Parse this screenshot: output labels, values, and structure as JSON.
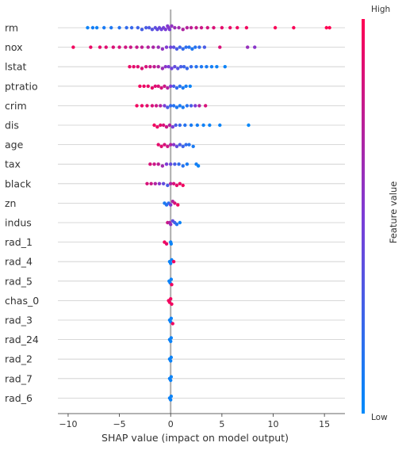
{
  "chart_data": {
    "type": "scatter",
    "subtype": "shap-beeswarm",
    "title": "",
    "xlabel": "SHAP value (impact on model output)",
    "ylabel": "",
    "xlim": [
      -11,
      17
    ],
    "xticks": [
      -10,
      -5,
      0,
      5,
      10,
      15
    ],
    "grid": true,
    "colorbar": {
      "label": "Feature value",
      "high_label": "High",
      "low_label": "Low",
      "low_color": "#008bfb",
      "high_color": "#ff0052",
      "placement": "right"
    },
    "colors": {
      "low": "#008bfb",
      "high": "#ff0052",
      "zero_line": "#999999",
      "row_lines": "#cccccc"
    },
    "features": [
      {
        "name": "rm",
        "points": [
          {
            "x": -8.1,
            "v": 0.05
          },
          {
            "x": -7.6,
            "v": 0.08
          },
          {
            "x": -7.2,
            "v": 0.06
          },
          {
            "x": -6.5,
            "v": 0.1
          },
          {
            "x": -5.8,
            "v": 0.12
          },
          {
            "x": -5.0,
            "v": 0.15
          },
          {
            "x": -4.3,
            "v": 0.2
          },
          {
            "x": -3.8,
            "v": 0.22
          },
          {
            "x": -3.2,
            "v": 0.25
          },
          {
            "x": -2.8,
            "v": 0.28
          },
          {
            "x": -2.4,
            "v": 0.3
          },
          {
            "x": -2.1,
            "v": 0.32
          },
          {
            "x": -1.8,
            "v": 0.35
          },
          {
            "x": -1.5,
            "v": 0.38
          },
          {
            "x": -1.3,
            "v": 0.4
          },
          {
            "x": -1.1,
            "v": 0.42
          },
          {
            "x": -0.9,
            "v": 0.45
          },
          {
            "x": -0.7,
            "v": 0.48
          },
          {
            "x": -0.5,
            "v": 0.5
          },
          {
            "x": -0.3,
            "v": 0.52
          },
          {
            "x": -0.2,
            "v": 0.55
          },
          {
            "x": -0.1,
            "v": 0.5
          },
          {
            "x": 0.1,
            "v": 0.58
          },
          {
            "x": 0.4,
            "v": 0.62
          },
          {
            "x": 0.8,
            "v": 0.65
          },
          {
            "x": 1.2,
            "v": 0.7
          },
          {
            "x": 1.6,
            "v": 0.72
          },
          {
            "x": 2.0,
            "v": 0.75
          },
          {
            "x": 2.5,
            "v": 0.78
          },
          {
            "x": 3.0,
            "v": 0.8
          },
          {
            "x": 3.6,
            "v": 0.83
          },
          {
            "x": 4.2,
            "v": 0.86
          },
          {
            "x": 5.0,
            "v": 0.9
          },
          {
            "x": 5.8,
            "v": 0.92
          },
          {
            "x": 6.5,
            "v": 0.94
          },
          {
            "x": 7.4,
            "v": 0.95
          },
          {
            "x": 10.2,
            "v": 0.98
          },
          {
            "x": 12.0,
            "v": 0.98
          },
          {
            "x": 15.2,
            "v": 1.0
          },
          {
            "x": 15.5,
            "v": 1.0
          }
        ]
      },
      {
        "name": "nox",
        "points": [
          {
            "x": -9.5,
            "v": 0.95
          },
          {
            "x": -7.8,
            "v": 0.92
          },
          {
            "x": -6.9,
            "v": 0.9
          },
          {
            "x": -6.3,
            "v": 0.88
          },
          {
            "x": -5.6,
            "v": 0.86
          },
          {
            "x": -5.0,
            "v": 0.85
          },
          {
            "x": -4.4,
            "v": 0.82
          },
          {
            "x": -3.9,
            "v": 0.8
          },
          {
            "x": -3.3,
            "v": 0.78
          },
          {
            "x": -2.8,
            "v": 0.75
          },
          {
            "x": -2.2,
            "v": 0.72
          },
          {
            "x": -1.7,
            "v": 0.68
          },
          {
            "x": -1.2,
            "v": 0.62
          },
          {
            "x": -0.8,
            "v": 0.58
          },
          {
            "x": -0.4,
            "v": 0.52
          },
          {
            "x": 0.0,
            "v": 0.45
          },
          {
            "x": 0.3,
            "v": 0.38
          },
          {
            "x": 0.6,
            "v": 0.3
          },
          {
            "x": 0.9,
            "v": 0.25
          },
          {
            "x": 1.2,
            "v": 0.2
          },
          {
            "x": 1.5,
            "v": 0.18
          },
          {
            "x": 1.8,
            "v": 0.15
          },
          {
            "x": 2.1,
            "v": 0.12
          },
          {
            "x": 2.4,
            "v": 0.15
          },
          {
            "x": 2.8,
            "v": 0.2
          },
          {
            "x": 3.3,
            "v": 0.3
          },
          {
            "x": 4.8,
            "v": 0.85
          },
          {
            "x": 7.5,
            "v": 0.6
          },
          {
            "x": 8.2,
            "v": 0.55
          }
        ]
      },
      {
        "name": "lstat",
        "points": [
          {
            "x": -4.0,
            "v": 0.92
          },
          {
            "x": -3.6,
            "v": 0.9
          },
          {
            "x": -3.2,
            "v": 0.88
          },
          {
            "x": -2.8,
            "v": 0.86
          },
          {
            "x": -2.4,
            "v": 0.84
          },
          {
            "x": -2.0,
            "v": 0.8
          },
          {
            "x": -1.6,
            "v": 0.76
          },
          {
            "x": -1.2,
            "v": 0.7
          },
          {
            "x": -0.8,
            "v": 0.62
          },
          {
            "x": -0.5,
            "v": 0.55
          },
          {
            "x": -0.2,
            "v": 0.5
          },
          {
            "x": 0.1,
            "v": 0.45
          },
          {
            "x": 0.4,
            "v": 0.4
          },
          {
            "x": 0.7,
            "v": 0.35
          },
          {
            "x": 1.0,
            "v": 0.3
          },
          {
            "x": 1.3,
            "v": 0.25
          },
          {
            "x": 1.6,
            "v": 0.22
          },
          {
            "x": 2.0,
            "v": 0.2
          },
          {
            "x": 2.5,
            "v": 0.15
          },
          {
            "x": 3.0,
            "v": 0.12
          },
          {
            "x": 3.5,
            "v": 0.1
          },
          {
            "x": 4.0,
            "v": 0.08
          },
          {
            "x": 4.5,
            "v": 0.06
          },
          {
            "x": 5.3,
            "v": 0.05
          }
        ]
      },
      {
        "name": "ptratio",
        "points": [
          {
            "x": -3.0,
            "v": 0.95
          },
          {
            "x": -2.6,
            "v": 0.93
          },
          {
            "x": -2.2,
            "v": 0.92
          },
          {
            "x": -1.8,
            "v": 0.9
          },
          {
            "x": -1.5,
            "v": 0.88
          },
          {
            "x": -1.2,
            "v": 0.86
          },
          {
            "x": -0.9,
            "v": 0.84
          },
          {
            "x": -0.6,
            "v": 0.8
          },
          {
            "x": -0.3,
            "v": 0.7
          },
          {
            "x": 0.0,
            "v": 0.5
          },
          {
            "x": 0.3,
            "v": 0.3
          },
          {
            "x": 0.6,
            "v": 0.2
          },
          {
            "x": 0.9,
            "v": 0.15
          },
          {
            "x": 1.2,
            "v": 0.1
          },
          {
            "x": 1.5,
            "v": 0.08
          },
          {
            "x": 1.9,
            "v": 0.05
          }
        ]
      },
      {
        "name": "crim",
        "points": [
          {
            "x": -3.3,
            "v": 0.95
          },
          {
            "x": -2.8,
            "v": 0.92
          },
          {
            "x": -2.3,
            "v": 0.9
          },
          {
            "x": -1.8,
            "v": 0.85
          },
          {
            "x": -1.4,
            "v": 0.8
          },
          {
            "x": -1.0,
            "v": 0.7
          },
          {
            "x": -0.6,
            "v": 0.5
          },
          {
            "x": -0.3,
            "v": 0.3
          },
          {
            "x": 0.0,
            "v": 0.2
          },
          {
            "x": 0.3,
            "v": 0.15
          },
          {
            "x": 0.6,
            "v": 0.12
          },
          {
            "x": 0.9,
            "v": 0.1
          },
          {
            "x": 1.2,
            "v": 0.1
          },
          {
            "x": 1.6,
            "v": 0.15
          },
          {
            "x": 2.0,
            "v": 0.3
          },
          {
            "x": 2.4,
            "v": 0.5
          },
          {
            "x": 2.8,
            "v": 0.7
          },
          {
            "x": 3.4,
            "v": 0.85
          }
        ]
      },
      {
        "name": "dis",
        "points": [
          {
            "x": -1.6,
            "v": 0.95
          },
          {
            "x": -1.3,
            "v": 0.92
          },
          {
            "x": -1.0,
            "v": 0.9
          },
          {
            "x": -0.7,
            "v": 0.85
          },
          {
            "x": -0.4,
            "v": 0.8
          },
          {
            "x": -0.1,
            "v": 0.7
          },
          {
            "x": 0.2,
            "v": 0.5
          },
          {
            "x": 0.5,
            "v": 0.3
          },
          {
            "x": 0.9,
            "v": 0.2
          },
          {
            "x": 1.4,
            "v": 0.15
          },
          {
            "x": 2.0,
            "v": 0.1
          },
          {
            "x": 2.6,
            "v": 0.08
          },
          {
            "x": 3.2,
            "v": 0.06
          },
          {
            "x": 3.8,
            "v": 0.05
          },
          {
            "x": 4.8,
            "v": 0.05
          },
          {
            "x": 7.6,
            "v": 0.02
          }
        ]
      },
      {
        "name": "age",
        "points": [
          {
            "x": -1.2,
            "v": 0.9
          },
          {
            "x": -0.9,
            "v": 0.88
          },
          {
            "x": -0.6,
            "v": 0.85
          },
          {
            "x": -0.3,
            "v": 0.8
          },
          {
            "x": 0.0,
            "v": 0.7
          },
          {
            "x": 0.3,
            "v": 0.55
          },
          {
            "x": 0.6,
            "v": 0.4
          },
          {
            "x": 0.9,
            "v": 0.3
          },
          {
            "x": 1.2,
            "v": 0.25
          },
          {
            "x": 1.5,
            "v": 0.2
          },
          {
            "x": 1.8,
            "v": 0.15
          },
          {
            "x": 2.2,
            "v": 0.1
          }
        ]
      },
      {
        "name": "tax",
        "points": [
          {
            "x": -2.0,
            "v": 0.85
          },
          {
            "x": -1.6,
            "v": 0.8
          },
          {
            "x": -1.2,
            "v": 0.75
          },
          {
            "x": -0.8,
            "v": 0.65
          },
          {
            "x": -0.4,
            "v": 0.5
          },
          {
            "x": 0.0,
            "v": 0.4
          },
          {
            "x": 0.4,
            "v": 0.3
          },
          {
            "x": 0.8,
            "v": 0.2
          },
          {
            "x": 1.2,
            "v": 0.15
          },
          {
            "x": 1.6,
            "v": 0.1
          },
          {
            "x": 2.5,
            "v": 0.08
          },
          {
            "x": 2.7,
            "v": 0.05
          }
        ]
      },
      {
        "name": "black",
        "points": [
          {
            "x": -2.3,
            "v": 0.85
          },
          {
            "x": -1.9,
            "v": 0.8
          },
          {
            "x": -1.5,
            "v": 0.7
          },
          {
            "x": -1.1,
            "v": 0.55
          },
          {
            "x": -0.7,
            "v": 0.4
          },
          {
            "x": -0.3,
            "v": 0.3
          },
          {
            "x": 0.0,
            "v": 0.7
          },
          {
            "x": 0.3,
            "v": 0.85
          },
          {
            "x": 0.6,
            "v": 0.9
          },
          {
            "x": 0.9,
            "v": 0.92
          },
          {
            "x": 1.2,
            "v": 0.95
          }
        ]
      },
      {
        "name": "zn",
        "points": [
          {
            "x": -0.6,
            "v": 0.1
          },
          {
            "x": -0.4,
            "v": 0.15
          },
          {
            "x": -0.2,
            "v": 0.2
          },
          {
            "x": 0.0,
            "v": 0.5
          },
          {
            "x": 0.2,
            "v": 0.7
          },
          {
            "x": 0.4,
            "v": 0.85
          },
          {
            "x": 0.7,
            "v": 0.95
          }
        ]
      },
      {
        "name": "indus",
        "points": [
          {
            "x": -0.3,
            "v": 0.8
          },
          {
            "x": -0.1,
            "v": 0.7
          },
          {
            "x": 0.0,
            "v": 0.6
          },
          {
            "x": 0.2,
            "v": 0.4
          },
          {
            "x": 0.4,
            "v": 0.25
          },
          {
            "x": 0.6,
            "v": 0.15
          },
          {
            "x": 0.9,
            "v": 0.05
          }
        ]
      },
      {
        "name": "rad_1",
        "points": [
          {
            "x": -0.6,
            "v": 0.95
          },
          {
            "x": -0.4,
            "v": 0.9
          },
          {
            "x": 0.0,
            "v": 0.05
          },
          {
            "x": 0.05,
            "v": 0.05
          }
        ]
      },
      {
        "name": "rad_4",
        "points": [
          {
            "x": -0.1,
            "v": 0.05
          },
          {
            "x": 0.0,
            "v": 0.05
          },
          {
            "x": 0.1,
            "v": 0.05
          },
          {
            "x": 0.3,
            "v": 0.95
          }
        ]
      },
      {
        "name": "rad_5",
        "points": [
          {
            "x": -0.15,
            "v": 0.05
          },
          {
            "x": -0.05,
            "v": 0.05
          },
          {
            "x": 0.05,
            "v": 0.05
          },
          {
            "x": 0.1,
            "v": 0.95
          }
        ]
      },
      {
        "name": "chas_0",
        "points": [
          {
            "x": -0.2,
            "v": 0.95
          },
          {
            "x": -0.1,
            "v": 0.95
          },
          {
            "x": 0.0,
            "v": 0.95
          },
          {
            "x": 0.1,
            "v": 0.95
          }
        ]
      },
      {
        "name": "rad_3",
        "points": [
          {
            "x": -0.1,
            "v": 0.05
          },
          {
            "x": 0.0,
            "v": 0.05
          },
          {
            "x": 0.05,
            "v": 0.05
          },
          {
            "x": 0.2,
            "v": 0.95
          }
        ]
      },
      {
        "name": "rad_24",
        "points": [
          {
            "x": -0.1,
            "v": 0.05
          },
          {
            "x": 0.0,
            "v": 0.05
          },
          {
            "x": 0.05,
            "v": 0.05
          }
        ]
      },
      {
        "name": "rad_2",
        "points": [
          {
            "x": -0.1,
            "v": 0.05
          },
          {
            "x": 0.0,
            "v": 0.05
          },
          {
            "x": 0.05,
            "v": 0.05
          }
        ]
      },
      {
        "name": "rad_7",
        "points": [
          {
            "x": -0.1,
            "v": 0.05
          },
          {
            "x": 0.0,
            "v": 0.05
          },
          {
            "x": 0.05,
            "v": 0.05
          }
        ]
      },
      {
        "name": "rad_6",
        "points": [
          {
            "x": -0.1,
            "v": 0.05
          },
          {
            "x": 0.0,
            "v": 0.05
          },
          {
            "x": 0.05,
            "v": 0.05
          }
        ]
      }
    ]
  }
}
